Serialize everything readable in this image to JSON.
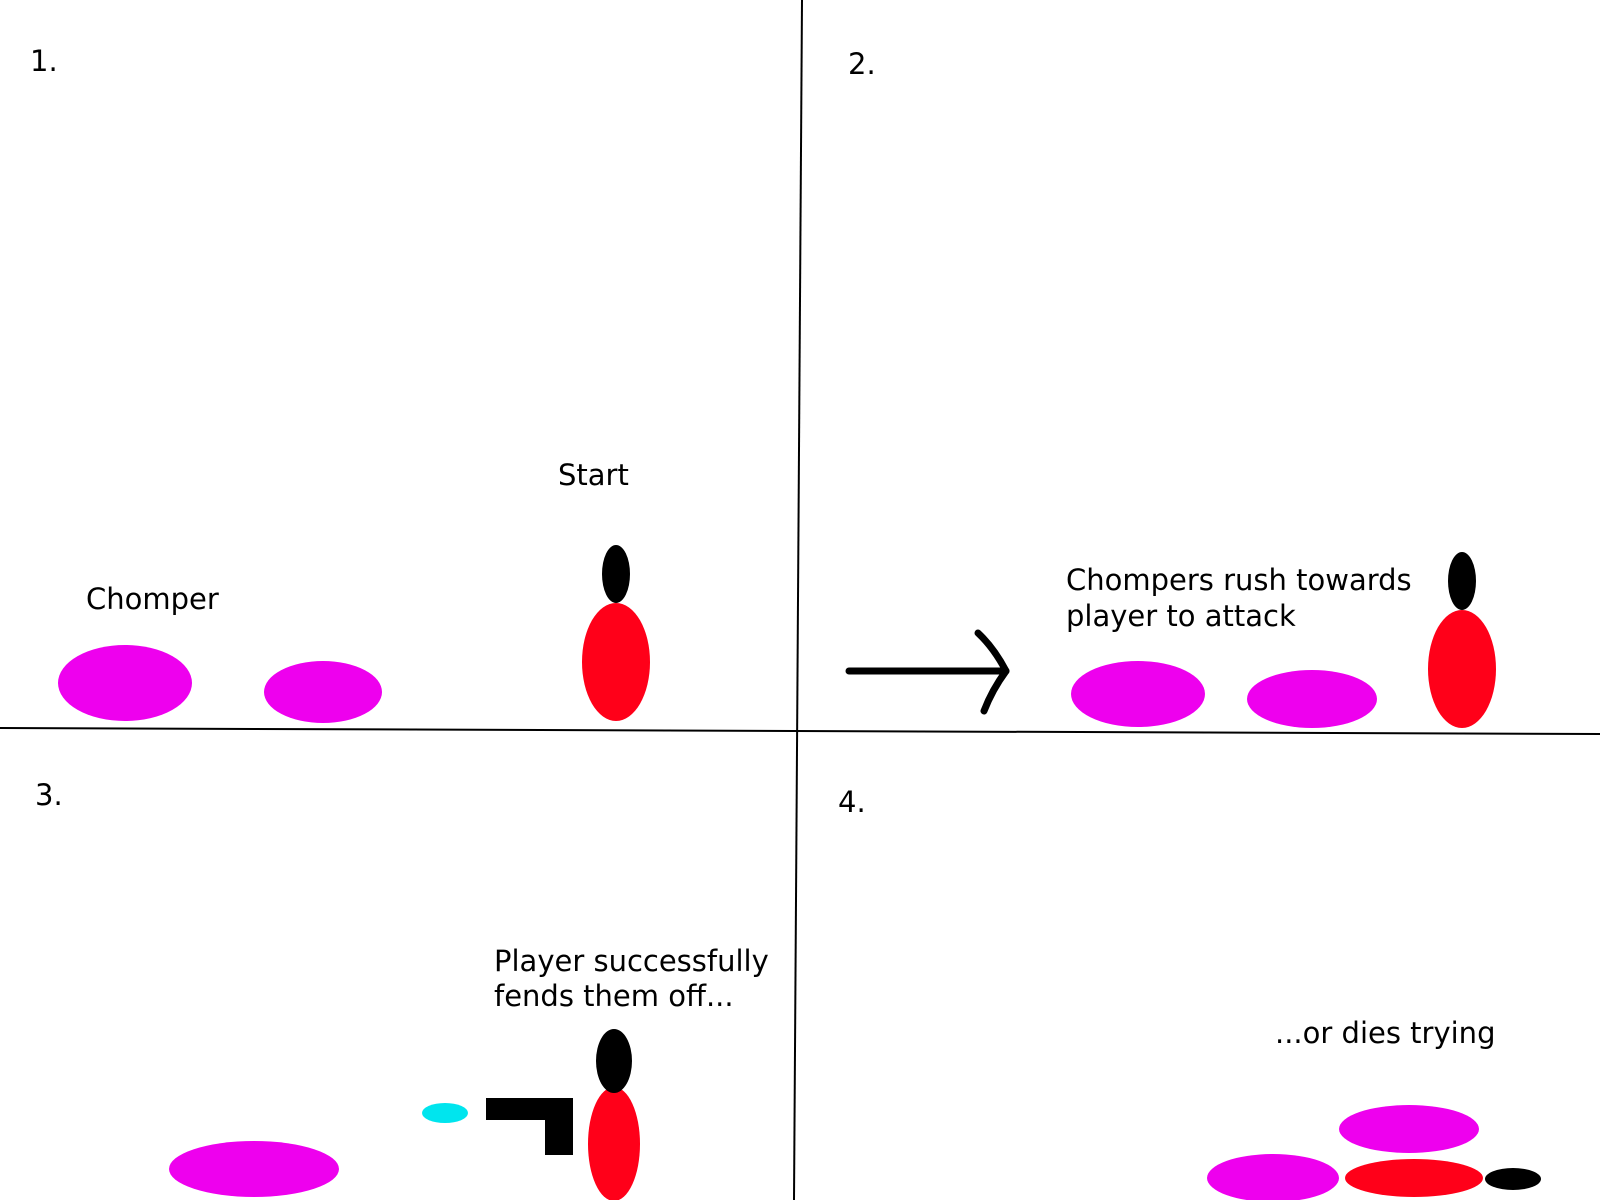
{
  "panels": [
    {
      "number": "1.",
      "captions": [
        "Start",
        "Chomper"
      ]
    },
    {
      "number": "2.",
      "captions": [
        "Chompers rush towards",
        "player to attack"
      ]
    },
    {
      "number": "3.",
      "captions": [
        "Player successfully",
        "fends them off..."
      ]
    },
    {
      "number": "4.",
      "captions": [
        "...or dies trying"
      ]
    }
  ],
  "colors": {
    "chomper": "#ee00ee",
    "player_body": "#ff0019",
    "player_head": "#000000",
    "projectile": "#00e5ee",
    "gun": "#000000",
    "lines": "#000000",
    "background": "#ffffff"
  },
  "icons": [
    "right-arrow-icon"
  ]
}
